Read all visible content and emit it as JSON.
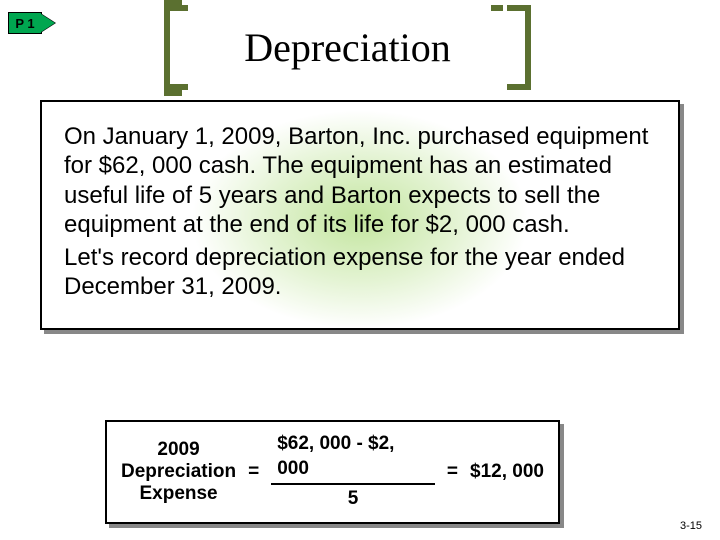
{
  "badge": {
    "label": "P 1"
  },
  "title": "Depreciation",
  "body": {
    "p1": "On January 1, 2009, Barton, Inc. purchased equipment for $62, 000 cash.  The equipment has an estimated useful life of 5 years and Barton expects to sell the equipment at the end of its life for $2, 000 cash.",
    "p2": "Let's record depreciation expense for the year ended December 31, 2009."
  },
  "formula": {
    "label_line1": "2009",
    "label_line2": "Depreciation",
    "label_line3": "Expense",
    "eq1": "=",
    "numerator": "$62, 000  -  $2, 000",
    "denominator": "5",
    "eq2": "=",
    "result": "$12, 000"
  },
  "slide_number": "3-15",
  "colors": {
    "accent_green": "#00a650",
    "bracket": "#5b7030",
    "glow": "#92d050",
    "shadow": "#888888"
  }
}
